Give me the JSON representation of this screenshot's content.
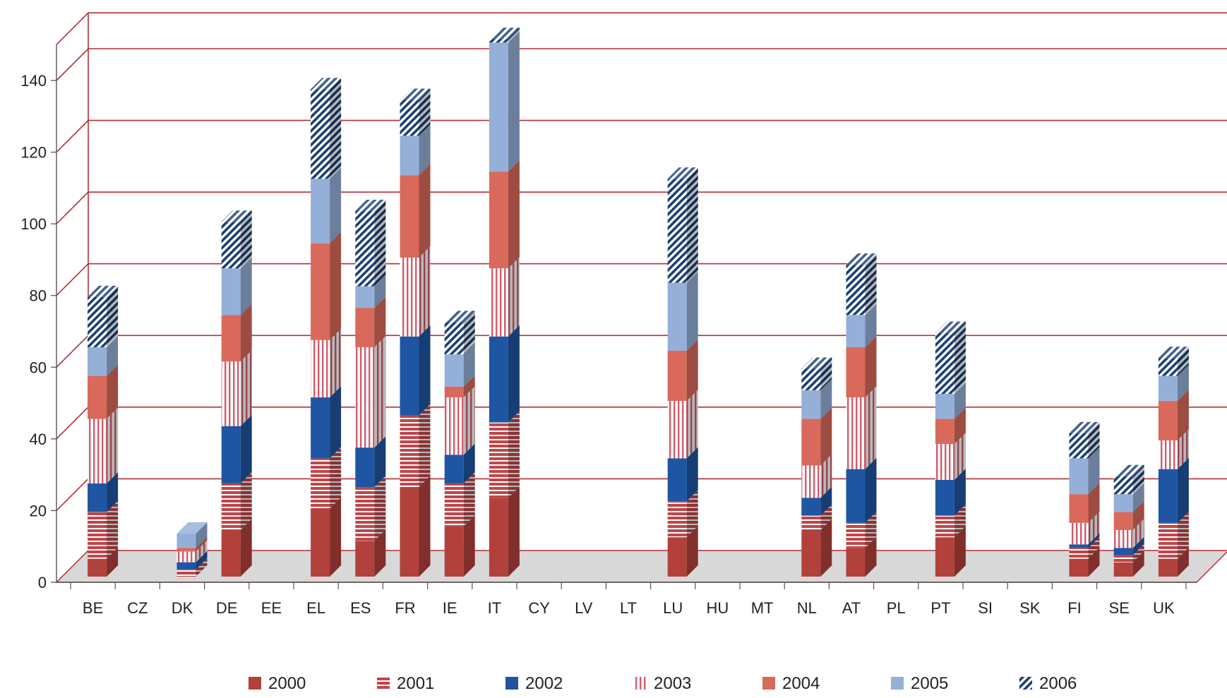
{
  "chart_data": {
    "type": "bar",
    "stacked": true,
    "three_d": true,
    "categories": [
      "BE",
      "CZ",
      "DK",
      "DE",
      "EE",
      "EL",
      "ES",
      "FR",
      "IE",
      "IT",
      "CY",
      "LV",
      "LT",
      "LU",
      "HU",
      "MT",
      "NL",
      "AT",
      "PL",
      "PT",
      "SI",
      "SK",
      "FI",
      "SE",
      "UK"
    ],
    "series": [
      {
        "name": "2000",
        "values": [
          5,
          0,
          0,
          13,
          0,
          19,
          10,
          25,
          14,
          22,
          0,
          0,
          0,
          11,
          0,
          0,
          13,
          8,
          0,
          11,
          0,
          0,
          5,
          4,
          5
        ]
      },
      {
        "name": "2001",
        "values": [
          13,
          0,
          2,
          13,
          0,
          14,
          15,
          20,
          12,
          21,
          0,
          0,
          0,
          10,
          0,
          0,
          4,
          7,
          0,
          6,
          0,
          0,
          3,
          2,
          10
        ]
      },
      {
        "name": "2002",
        "values": [
          8,
          0,
          2,
          16,
          0,
          17,
          11,
          22,
          8,
          24,
          0,
          0,
          0,
          12,
          0,
          0,
          5,
          15,
          0,
          10,
          0,
          0,
          1,
          2,
          15
        ]
      },
      {
        "name": "2003",
        "values": [
          18,
          0,
          3,
          18,
          0,
          16,
          28,
          22,
          16,
          19,
          0,
          0,
          0,
          16,
          0,
          0,
          9,
          20,
          0,
          10,
          0,
          0,
          6,
          5,
          8
        ]
      },
      {
        "name": "2004",
        "values": [
          12,
          0,
          1,
          13,
          0,
          27,
          11,
          23,
          3,
          27,
          0,
          0,
          0,
          14,
          0,
          0,
          13,
          14,
          0,
          7,
          0,
          0,
          8,
          5,
          11
        ]
      },
      {
        "name": "2005",
        "values": [
          8,
          0,
          4,
          13,
          0,
          18,
          6,
          11,
          9,
          36,
          0,
          0,
          0,
          19,
          0,
          0,
          8,
          9,
          0,
          7,
          0,
          0,
          10,
          5,
          7
        ]
      },
      {
        "name": "2006",
        "values": [
          14,
          0,
          0,
          13,
          0,
          25,
          21,
          10,
          9,
          1,
          0,
          0,
          0,
          29,
          0,
          0,
          6,
          14,
          0,
          17,
          0,
          0,
          7,
          5,
          5
        ]
      }
    ],
    "yticks": [
      "0",
      "20",
      "40",
      "60",
      "80",
      "100",
      "120",
      "140"
    ],
    "ylim": [
      0,
      150
    ],
    "grid": true,
    "legend_position": "bottom",
    "colors": {
      "2000": "#b2413c",
      "2001": "#c0464a",
      "2002": "#1e56a3",
      "2003": "#d05d6c",
      "2004": "#d9695a",
      "2005": "#94b0d8",
      "2006": "#1b3f72",
      "grid": "#b22f35",
      "floor": "#d8d8d8"
    }
  }
}
